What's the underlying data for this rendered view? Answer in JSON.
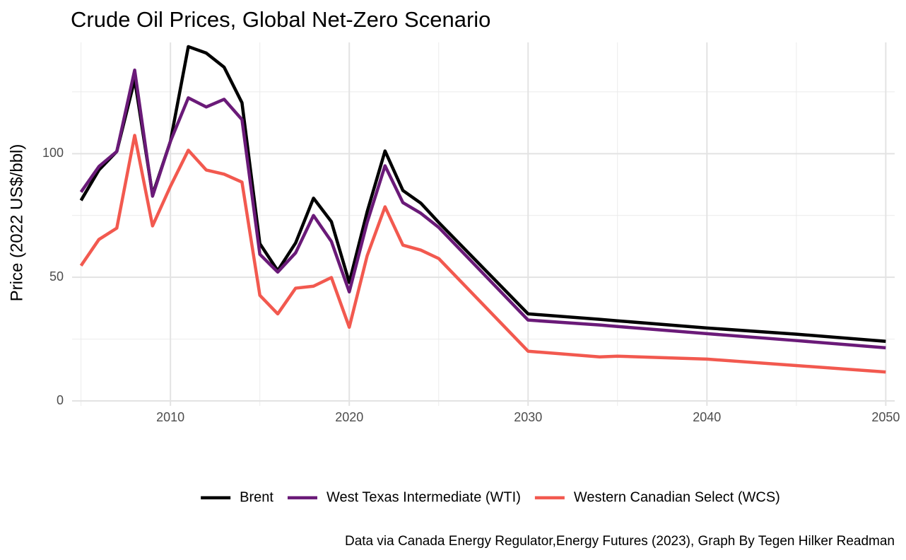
{
  "chart_data": {
    "type": "line",
    "title": "Crude Oil Prices, Global Net-Zero Scenario",
    "y_label": "Price (2022 US$/bbl)",
    "caption": "Data via Canada Energy Regulator,Energy Futures (2023), Graph By Tegen Hilker Readman",
    "x": [
      2005,
      2006,
      2007,
      2008,
      2009,
      2010,
      2011,
      2012,
      2013,
      2014,
      2015,
      2016,
      2017,
      2018,
      2019,
      2020,
      2021,
      2022,
      2023,
      2024,
      2025,
      2030,
      2034,
      2035,
      2040,
      2045,
      2050
    ],
    "series": [
      {
        "name": "Brent",
        "color": "#000000",
        "values": [
          81.1,
          93.4,
          100.9,
          130,
          83.4,
          105,
          143.3,
          140.7,
          135,
          120.6,
          63.6,
          52.7,
          63.9,
          82,
          72.5,
          47.9,
          76.5,
          101.1,
          85.1,
          80,
          72.2,
          35.2,
          33,
          32.4,
          29.5,
          27,
          24.1
        ]
      },
      {
        "name": "West Texas Intermediate (WTI)",
        "color": "#6a1a78",
        "values": [
          84.5,
          94.8,
          100.9,
          133.8,
          82.8,
          105,
          122.6,
          118.9,
          122,
          113.8,
          59.3,
          52.1,
          59.9,
          75,
          64.5,
          44.1,
          72.2,
          95.1,
          80.2,
          75.9,
          70.2,
          32.7,
          30.7,
          30.1,
          27.2,
          24.4,
          21.5
        ]
      },
      {
        "name": "Western Canadian Select (WCS)",
        "color": "#f2594f",
        "values": [
          54.7,
          65.3,
          69.9,
          107.4,
          70.8,
          86.8,
          101.4,
          93.4,
          91.7,
          88.5,
          42.7,
          35.2,
          45.6,
          46.4,
          49.9,
          29.8,
          58.7,
          78.5,
          63,
          61,
          57.6,
          20.1,
          17.8,
          18.1,
          16.9,
          14.3,
          11.7
        ]
      }
    ],
    "xlim": [
      2004.5,
      2050.5
    ],
    "xticks": [
      2010,
      2020,
      2030,
      2040,
      2050
    ],
    "x_minor_ticks": [
      2005,
      2015,
      2025,
      2035,
      2045
    ],
    "ylim": [
      -2,
      145
    ],
    "yticks": [
      0,
      50,
      100
    ],
    "y_minor_ticks": [
      25,
      75,
      125
    ],
    "grid": true,
    "legend": "bottom"
  }
}
